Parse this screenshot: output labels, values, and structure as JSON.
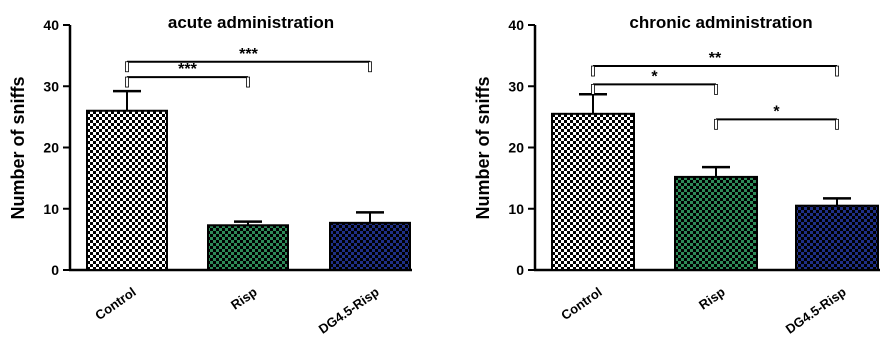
{
  "chart_data": [
    {
      "type": "bar",
      "title": "acute administration",
      "ylabel": "Number of sniffs",
      "xlabel": "",
      "ylim": [
        0,
        40
      ],
      "yticks": [
        0,
        10,
        20,
        30,
        40
      ],
      "categories": [
        "Control",
        "Risp",
        "DG4.5-Risp"
      ],
      "values": [
        26,
        7.3,
        7.7
      ],
      "errors": [
        3.2,
        0.6,
        1.7
      ],
      "bar_colors": [
        "#000000",
        "#2e8a57",
        "#1f2f86"
      ],
      "pattern": "checkerboard",
      "significance": [
        {
          "from": 0,
          "to": 1,
          "label": "***",
          "y": 31.5
        },
        {
          "from": 0,
          "to": 2,
          "label": "***",
          "y": 34
        }
      ]
    },
    {
      "type": "bar",
      "title": "chronic administration",
      "ylabel": "Number of sniffs",
      "xlabel": "",
      "ylim": [
        0,
        40
      ],
      "yticks": [
        0,
        10,
        20,
        30,
        40
      ],
      "categories": [
        "Control",
        "Risp",
        "DG4.5-Risp"
      ],
      "values": [
        25.5,
        15.2,
        10.5
      ],
      "errors": [
        3.2,
        1.6,
        1.2
      ],
      "bar_colors": [
        "#000000",
        "#2e8a57",
        "#1f2f86"
      ],
      "pattern": "checkerboard",
      "significance": [
        {
          "from": 0,
          "to": 1,
          "label": "*",
          "y": 30.3
        },
        {
          "from": 0,
          "to": 2,
          "label": "**",
          "y": 33.3
        },
        {
          "from": 1,
          "to": 2,
          "label": "*",
          "y": 24.6
        }
      ]
    }
  ]
}
